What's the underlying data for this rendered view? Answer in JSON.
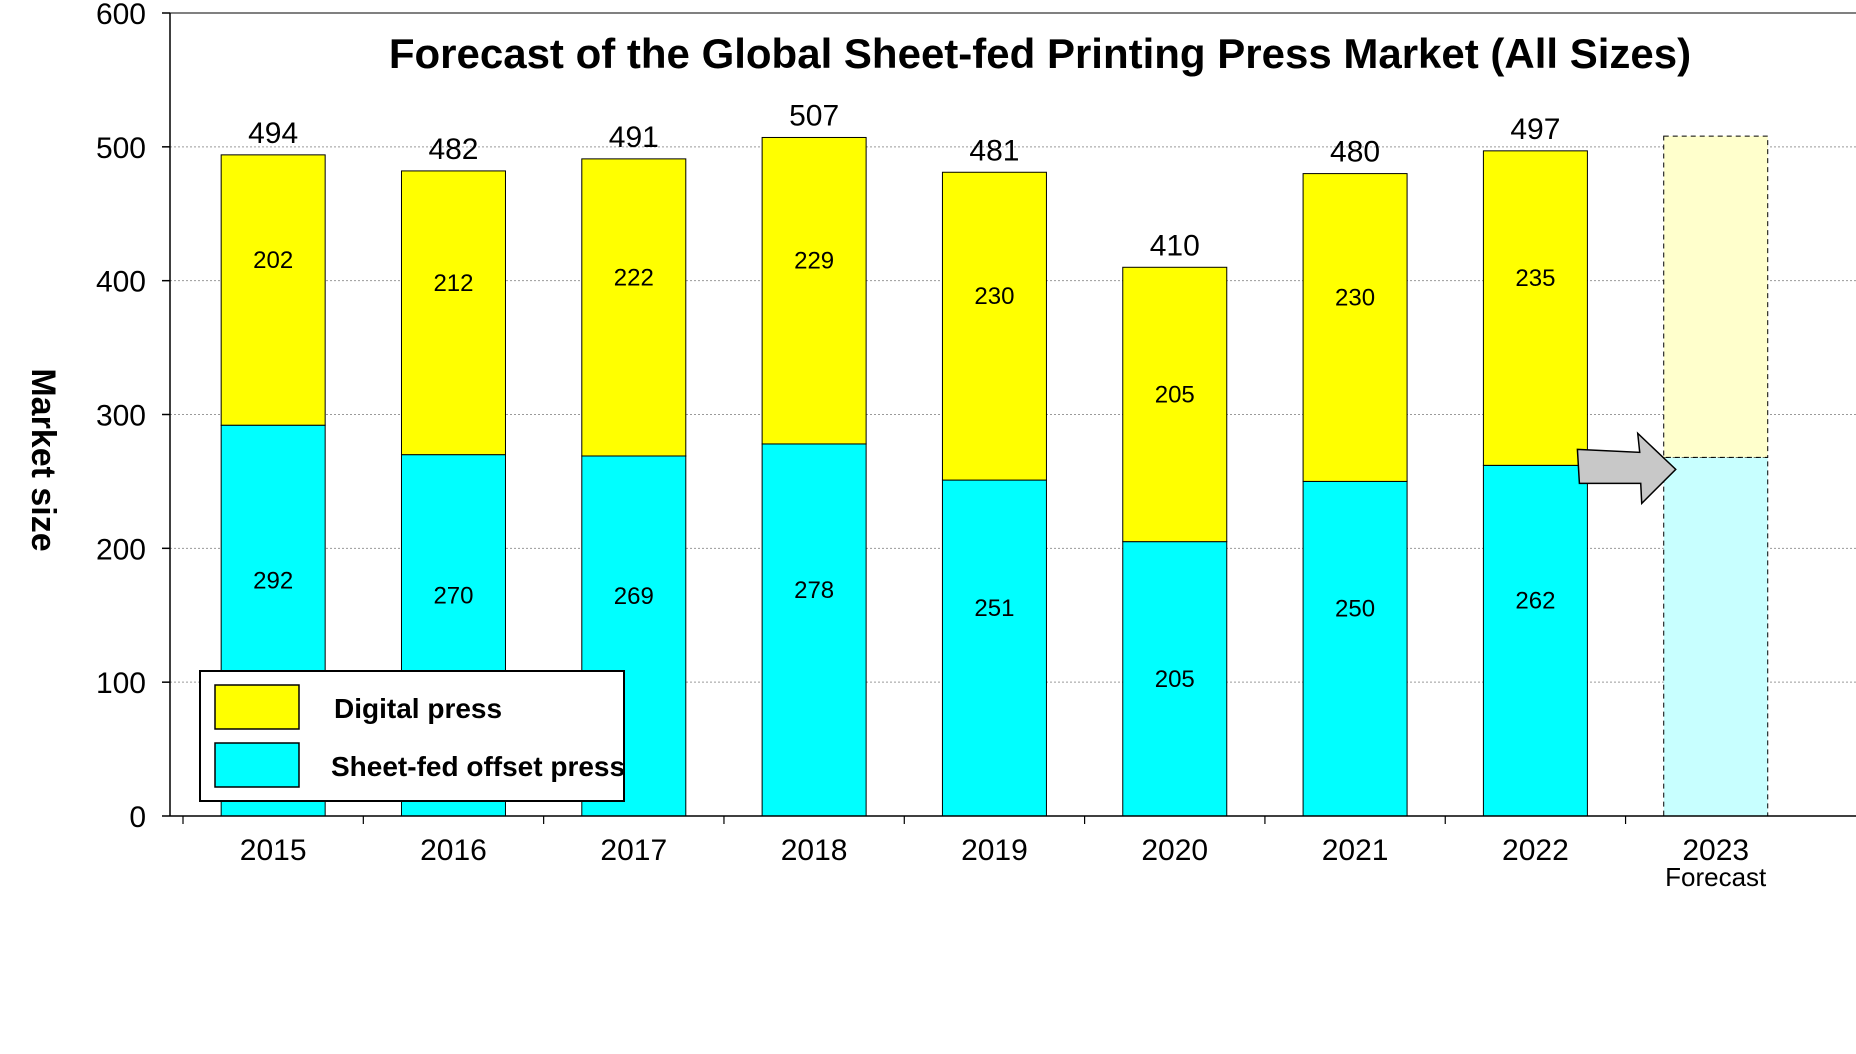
{
  "chart_data": {
    "type": "bar",
    "stacked": true,
    "title": "Forecast of the Global Sheet-fed Printing Press Market (All Sizes)",
    "xlabel": "",
    "ylabel": "Market size",
    "ylim": [
      0,
      600
    ],
    "yticks": [
      "0",
      "100",
      "200",
      "300",
      "400",
      "500",
      "600"
    ],
    "grid": true,
    "legend_position": "bottom-left",
    "categories": [
      "2015",
      "2016",
      "2017",
      "2018",
      "2019",
      "2020",
      "2021",
      "2022",
      "2023"
    ],
    "category_sublabels": [
      "",
      "",
      "",
      "",
      "",
      "",
      "",
      "",
      "Forecast"
    ],
    "series": [
      {
        "name": "Sheet-fed offset press",
        "color": "#00ffff",
        "values": [
          292,
          270,
          269,
          278,
          251,
          205,
          250,
          262,
          268
        ]
      },
      {
        "name": "Digital press",
        "color": "#ffff00",
        "values": [
          202,
          212,
          222,
          229,
          230,
          205,
          230,
          235,
          240
        ]
      }
    ],
    "totals": [
      494,
      482,
      491,
      507,
      481,
      410,
      480,
      497,
      null
    ],
    "segment_labels_shown": [
      true,
      true,
      true,
      true,
      true,
      true,
      true,
      true,
      false
    ],
    "forecast_index": 8,
    "forecast_style": {
      "offset_fill": "#c8ffff",
      "digital_fill": "#ffffcc",
      "outline": "dashed"
    },
    "annotations": [
      {
        "type": "arrow",
        "from": "2022",
        "to": "2023",
        "color": "#c8c8c8"
      }
    ]
  }
}
